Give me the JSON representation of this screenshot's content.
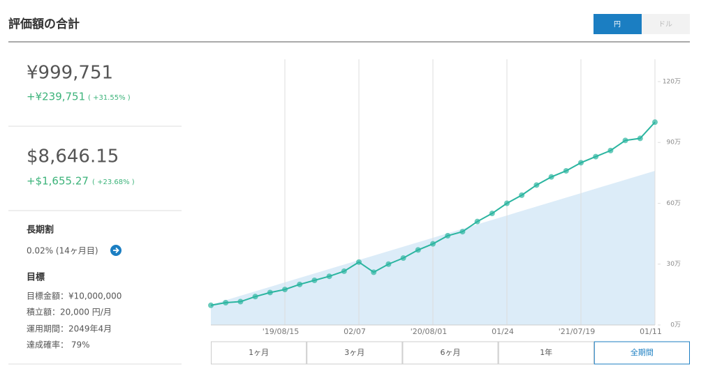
{
  "header": {
    "title": "評価額の合計",
    "currency_toggle": [
      "円",
      "ドル"
    ]
  },
  "summary": [
    {
      "value": "¥999,751",
      "change": "+¥239,751",
      "percent": "( +31.55% )"
    },
    {
      "value": "$8,646.15",
      "change": "+$1,655.27",
      "percent": "( +23.68% )"
    }
  ],
  "long_term": {
    "title": "長期割",
    "text": "0.02% (14ヶ月目)"
  },
  "goal": {
    "title": "目標",
    "lines": [
      "目標金額：¥10,000,000",
      "積立額：20,000 円/月",
      "運用期間：2049年4月",
      "達成確率： 79%"
    ]
  },
  "chart_data": {
    "type": "line",
    "categories": [
      null,
      null,
      null,
      null,
      null,
      "'19/08/15",
      null,
      null,
      null,
      null,
      "02/07",
      null,
      null,
      null,
      null,
      "'20/08/01",
      null,
      null,
      null,
      null,
      "01/24",
      null,
      null,
      null,
      null,
      "'21/07/19",
      null,
      null,
      null,
      null,
      "01/11"
    ],
    "series": [
      {
        "color": "#2bb5a0",
        "values": [
          9.7,
          11,
          11.5,
          14,
          16,
          17.5,
          20,
          22,
          24,
          26.5,
          31,
          26,
          30,
          33,
          37,
          40,
          44,
          46,
          51,
          55,
          60,
          64,
          69,
          73,
          76,
          80,
          83,
          86,
          91,
          92,
          100
        ]
      },
      {
        "color": "#dcecf8",
        "values": [
          10,
          12.2,
          14.4,
          16.6,
          18.8,
          21,
          23.2,
          25.4,
          27.6,
          29.8,
          32,
          34.2,
          36.4,
          38.6,
          40.8,
          43,
          45.2,
          47.4,
          49.6,
          51.8,
          54,
          56.2,
          58.4,
          60.6,
          62.8,
          65,
          67.2,
          69.4,
          71.6,
          73.8,
          76
        ]
      }
    ],
    "ylim": [
      0,
      131
    ],
    "yticks": [
      {
        "value": 0,
        "label": "0万"
      },
      {
        "value": 30,
        "label": "30万"
      },
      {
        "value": 60,
        "label": "60万"
      },
      {
        "value": 90,
        "label": "90万"
      },
      {
        "value": 120,
        "label": "120万"
      }
    ],
    "ranges": [
      "1ヶ月",
      "3ヶ月",
      "6ヶ月",
      "1年",
      "全期間"
    ]
  }
}
